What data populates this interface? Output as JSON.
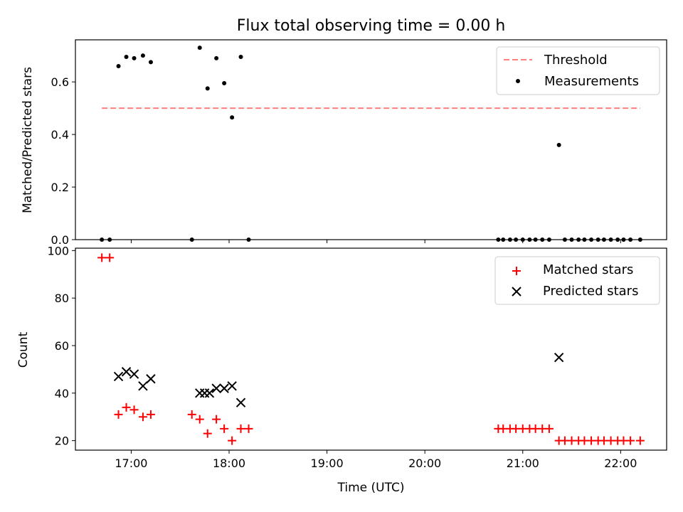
{
  "chart_data": [
    {
      "type": "scatter",
      "title": "Flux total observing time = 0.00 h",
      "xlabel": "",
      "ylabel": "Matched/Predicted stars",
      "xlim": [
        16.43,
        22.47
      ],
      "ylim": [
        0.0,
        0.76
      ],
      "xticks": [
        17,
        18,
        19,
        20,
        21,
        22
      ],
      "xtick_labels_shown": false,
      "yticks": [
        0.0,
        0.2,
        0.4,
        0.6
      ],
      "ytick_labels": [
        "0.0",
        "0.2",
        "0.4",
        "0.6"
      ],
      "legend_position": "top-right",
      "threshold": {
        "name": "Threshold",
        "color": "#ff7f7f",
        "style": "dashed",
        "x": [
          16.7,
          22.2
        ],
        "y": 0.5
      },
      "series": [
        {
          "name": "Measurements",
          "marker": "dot",
          "color": "#000000",
          "x": [
            16.7,
            16.78,
            16.87,
            16.95,
            17.03,
            17.12,
            17.2,
            17.62,
            17.7,
            17.78,
            17.87,
            17.95,
            18.03,
            18.12,
            18.2,
            20.75,
            20.8,
            20.87,
            20.93,
            21.0,
            21.07,
            21.13,
            21.2,
            21.27,
            21.37,
            21.43,
            21.5,
            21.57,
            21.63,
            21.7,
            21.77,
            21.83,
            21.9,
            21.97,
            22.03,
            22.1,
            22.2
          ],
          "y": [
            0.0,
            0.0,
            0.66,
            0.695,
            0.69,
            0.7,
            0.675,
            0.0,
            0.73,
            0.575,
            0.69,
            0.595,
            0.465,
            0.695,
            0.0,
            0.0,
            0.0,
            0.0,
            0.0,
            0.0,
            0.0,
            0.0,
            0.0,
            0.0,
            0.36,
            0.0,
            0.0,
            0.0,
            0.0,
            0.0,
            0.0,
            0.0,
            0.0,
            0.0,
            0.0,
            0.0,
            0.0
          ]
        }
      ]
    },
    {
      "type": "scatter",
      "title": "",
      "xlabel": "Time (UTC)",
      "ylabel": "Count",
      "xlim": [
        16.43,
        22.47
      ],
      "ylim": [
        16,
        101
      ],
      "xticks": [
        17,
        18,
        19,
        20,
        21,
        22
      ],
      "xtick_labels": [
        "17:00",
        "18:00",
        "19:00",
        "20:00",
        "21:00",
        "22:00"
      ],
      "yticks": [
        20,
        40,
        60,
        80,
        100
      ],
      "ytick_labels": [
        "20",
        "40",
        "60",
        "80",
        "100"
      ],
      "legend_position": "top-right",
      "series": [
        {
          "name": "Matched stars",
          "marker": "plus",
          "color": "#ff0000",
          "x": [
            16.7,
            16.78,
            16.87,
            16.95,
            17.03,
            17.12,
            17.2,
            17.62,
            17.7,
            17.78,
            17.87,
            17.95,
            18.03,
            18.12,
            18.2,
            20.75,
            20.8,
            20.87,
            20.93,
            21.0,
            21.07,
            21.13,
            21.2,
            21.27,
            21.37,
            21.43,
            21.5,
            21.57,
            21.63,
            21.7,
            21.77,
            21.83,
            21.9,
            21.97,
            22.03,
            22.1,
            22.2
          ],
          "y": [
            97,
            97,
            31,
            34,
            33,
            30,
            31,
            31,
            29,
            23,
            29,
            25,
            20,
            25,
            25,
            25,
            25,
            25,
            25,
            25,
            25,
            25,
            25,
            25,
            20,
            20,
            20,
            20,
            20,
            20,
            20,
            20,
            20,
            20,
            20,
            20,
            20
          ]
        },
        {
          "name": "Predicted stars",
          "marker": "x",
          "color": "#000000",
          "x": [
            16.87,
            16.95,
            17.03,
            17.12,
            17.2,
            17.7,
            17.75,
            17.8,
            17.87,
            17.95,
            18.03,
            18.12,
            21.37
          ],
          "y": [
            47,
            49,
            48,
            43,
            46,
            40,
            40,
            40,
            42,
            42,
            43,
            36,
            55
          ]
        }
      ]
    }
  ]
}
